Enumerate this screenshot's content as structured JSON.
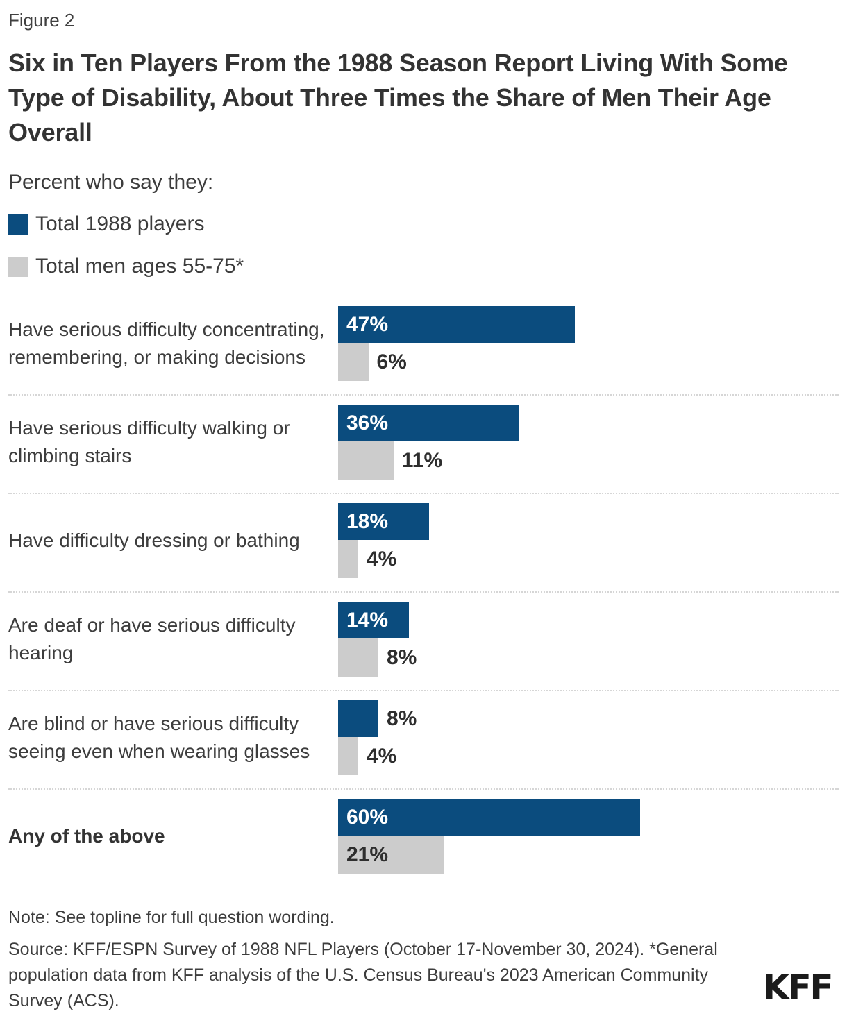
{
  "header": {
    "figure_label": "Figure 2",
    "title": "Six in Ten Players From the 1988 Season Report Living With Some Type of Disability, About Three Times the Share of Men Their Age Overall",
    "subtitle": "Percent who say they:"
  },
  "legend": [
    {
      "label": "Total 1988 players",
      "color": "#0B4C7E"
    },
    {
      "label": "Total men ages 55-75*",
      "color": "#CCCCCC"
    }
  ],
  "chart_data": {
    "type": "bar",
    "orientation": "horizontal",
    "unit": "%",
    "xlim": [
      0,
      100
    ],
    "grid": false,
    "legend_position": "top-left",
    "categories": [
      "Have serious difficulty concentrating, remembering, or making decisions",
      "Have serious difficulty walking or climbing stairs",
      "Have difficulty dressing or bathing",
      "Are deaf or have serious difficulty hearing",
      "Are blind or have serious difficulty seeing even when wearing glasses",
      "Any of the above"
    ],
    "emphasized_category_index": 5,
    "series": [
      {
        "name": "Total 1988 players",
        "color": "#0B4C7E",
        "values": [
          47,
          36,
          18,
          14,
          8,
          60
        ]
      },
      {
        "name": "Total men ages 55-75*",
        "color": "#CCCCCC",
        "values": [
          6,
          11,
          4,
          8,
          4,
          21
        ]
      }
    ]
  },
  "footer": {
    "note": "Note: See topline for full question wording.",
    "source": "Source: KFF/ESPN Survey of 1988 NFL Players (October 17-November 30, 2024). *General population data from KFF analysis of the U.S. Census Bureau's 2023 American Community Survey (ACS).",
    "logo": "KFF"
  }
}
